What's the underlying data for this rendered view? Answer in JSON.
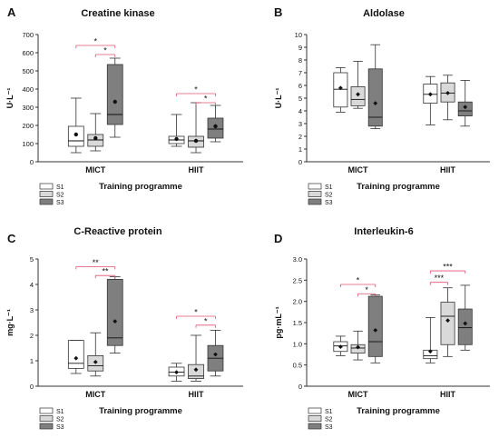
{
  "figure": {
    "colors": {
      "S1": "#ffffff",
      "S2": "#d9d9d9",
      "S3": "#7f7f7f",
      "sig_line": "#e05070",
      "axis": "#333333"
    }
  },
  "chart_data": [
    {
      "type": "box",
      "panel_label": "A",
      "title": "Creatine kinase",
      "ylabel": "U·L⁻¹",
      "xlabel": "Training programme",
      "ylim": [
        0,
        700
      ],
      "yticks": [
        0,
        100,
        200,
        300,
        400,
        500,
        600,
        700
      ],
      "categories": [
        "MICT",
        "HIIT"
      ],
      "legend": [
        "S1",
        "S2",
        "S3"
      ],
      "boxes": [
        {
          "group": "MICT",
          "session": "S1",
          "min": 50,
          "q1": 85,
          "median": 115,
          "q3": 195,
          "max": 350,
          "mean": 150
        },
        {
          "group": "MICT",
          "session": "S2",
          "min": 60,
          "q1": 85,
          "median": 120,
          "q3": 150,
          "max": 265,
          "mean": 130
        },
        {
          "group": "MICT",
          "session": "S3",
          "min": 135,
          "q1": 205,
          "median": 260,
          "q3": 535,
          "max": 570,
          "mean": 330
        },
        {
          "group": "HIIT",
          "session": "S1",
          "min": 85,
          "q1": 100,
          "median": 120,
          "q3": 140,
          "max": 260,
          "mean": 125
        },
        {
          "group": "HIIT",
          "session": "S2",
          "min": 50,
          "q1": 80,
          "median": 115,
          "q3": 140,
          "max": 325,
          "mean": 115
        },
        {
          "group": "HIIT",
          "session": "S3",
          "min": 110,
          "q1": 130,
          "median": 180,
          "q3": 240,
          "max": 310,
          "mean": 195
        }
      ],
      "significance": [
        {
          "group": "MICT",
          "from": "S1",
          "to": "S3",
          "label": "*",
          "y": 640
        },
        {
          "group": "MICT",
          "from": "S2",
          "to": "S3",
          "label": "*",
          "y": 590
        },
        {
          "group": "HIIT",
          "from": "S1",
          "to": "S3",
          "label": "*",
          "y": 375
        },
        {
          "group": "HIIT",
          "from": "S2",
          "to": "S3",
          "label": "*",
          "y": 325
        }
      ]
    },
    {
      "type": "box",
      "panel_label": "B",
      "title": "Aldolase",
      "ylabel": "U·L⁻¹",
      "xlabel": "Training programme",
      "ylim": [
        0,
        10
      ],
      "yticks": [
        0,
        1,
        2,
        3,
        4,
        5,
        6,
        7,
        8,
        9,
        10
      ],
      "categories": [
        "MICT",
        "HIIT"
      ],
      "legend": [
        "S1",
        "S2",
        "S3"
      ],
      "boxes": [
        {
          "group": "MICT",
          "session": "S1",
          "min": 3.9,
          "q1": 4.3,
          "median": 5.7,
          "q3": 7.0,
          "max": 7.4,
          "mean": 5.8
        },
        {
          "group": "MICT",
          "session": "S2",
          "min": 4.2,
          "q1": 4.4,
          "median": 4.9,
          "q3": 5.9,
          "max": 7.9,
          "mean": 5.3
        },
        {
          "group": "MICT",
          "session": "S3",
          "min": 2.6,
          "q1": 2.8,
          "median": 3.5,
          "q3": 7.3,
          "max": 9.2,
          "mean": 4.6
        },
        {
          "group": "HIIT",
          "session": "S1",
          "min": 2.9,
          "q1": 4.6,
          "median": 5.3,
          "q3": 6.1,
          "max": 6.7,
          "mean": 5.3
        },
        {
          "group": "HIIT",
          "session": "S2",
          "min": 3.3,
          "q1": 4.7,
          "median": 5.4,
          "q3": 6.2,
          "max": 6.8,
          "mean": 5.4
        },
        {
          "group": "HIIT",
          "session": "S3",
          "min": 2.8,
          "q1": 3.6,
          "median": 4.0,
          "q3": 4.7,
          "max": 6.4,
          "mean": 4.3
        }
      ],
      "significance": []
    },
    {
      "type": "box",
      "panel_label": "C",
      "title": "C-Reactive protein",
      "ylabel": "mg·L⁻¹",
      "xlabel": "Training programme",
      "ylim": [
        0,
        5
      ],
      "yticks": [
        0,
        1,
        2,
        3,
        4,
        5
      ],
      "categories": [
        "MICT",
        "HIIT"
      ],
      "legend": [
        "S1",
        "S2",
        "S3"
      ],
      "boxes": [
        {
          "group": "MICT",
          "session": "S1",
          "min": 0.5,
          "q1": 0.7,
          "median": 0.9,
          "q3": 1.8,
          "max": 1.8,
          "mean": 1.1
        },
        {
          "group": "MICT",
          "session": "S2",
          "min": 0.4,
          "q1": 0.6,
          "median": 0.8,
          "q3": 1.2,
          "max": 2.1,
          "mean": 0.95
        },
        {
          "group": "MICT",
          "session": "S3",
          "min": 1.3,
          "q1": 1.6,
          "median": 1.9,
          "q3": 4.2,
          "max": 4.3,
          "mean": 2.55
        },
        {
          "group": "HIIT",
          "session": "S1",
          "min": 0.2,
          "q1": 0.4,
          "median": 0.55,
          "q3": 0.75,
          "max": 0.9,
          "mean": 0.55
        },
        {
          "group": "HIIT",
          "session": "S2",
          "min": 0.2,
          "q1": 0.3,
          "median": 0.4,
          "q3": 0.85,
          "max": 2.0,
          "mean": 0.65
        },
        {
          "group": "HIIT",
          "session": "S3",
          "min": 0.4,
          "q1": 0.6,
          "median": 1.1,
          "q3": 1.6,
          "max": 2.2,
          "mean": 1.25
        }
      ],
      "significance": [
        {
          "group": "MICT",
          "from": "S1",
          "to": "S3",
          "label": "**",
          "y": 4.7
        },
        {
          "group": "MICT",
          "from": "S2",
          "to": "S3",
          "label": "**",
          "y": 4.35
        },
        {
          "group": "HIIT",
          "from": "S1",
          "to": "S3",
          "label": "*",
          "y": 2.75
        },
        {
          "group": "HIIT",
          "from": "S2",
          "to": "S3",
          "label": "*",
          "y": 2.4
        }
      ]
    },
    {
      "type": "box",
      "panel_label": "D",
      "title": "Interleukin-6",
      "ylabel": "pg·mL⁻¹",
      "xlabel": "Training programme",
      "ylim": [
        0,
        3.0
      ],
      "yticks": [
        0,
        0.5,
        1.0,
        1.5,
        2.0,
        2.5,
        3.0
      ],
      "ytick_labels": [
        "0",
        "0.5",
        "1.0",
        "1.5",
        "2.0",
        "2.5",
        "3.0"
      ],
      "categories": [
        "MICT",
        "HIIT"
      ],
      "legend": [
        "S1",
        "S2",
        "S3"
      ],
      "boxes": [
        {
          "group": "MICT",
          "session": "S1",
          "min": 0.72,
          "q1": 0.82,
          "median": 0.95,
          "q3": 1.05,
          "max": 1.18,
          "mean": 0.93
        },
        {
          "group": "MICT",
          "session": "S2",
          "min": 0.62,
          "q1": 0.78,
          "median": 0.9,
          "q3": 0.98,
          "max": 1.3,
          "mean": 0.92
        },
        {
          "group": "MICT",
          "session": "S3",
          "min": 0.55,
          "q1": 0.7,
          "median": 1.05,
          "q3": 2.12,
          "max": 2.15,
          "mean": 1.32
        },
        {
          "group": "HIIT",
          "session": "S1",
          "min": 0.55,
          "q1": 0.65,
          "median": 0.72,
          "q3": 0.85,
          "max": 1.62,
          "mean": 0.82
        },
        {
          "group": "HIIT",
          "session": "S2",
          "min": 0.7,
          "q1": 0.98,
          "median": 1.65,
          "q3": 1.98,
          "max": 2.32,
          "mean": 1.55
        },
        {
          "group": "HIIT",
          "session": "S3",
          "min": 0.85,
          "q1": 0.98,
          "median": 1.38,
          "q3": 1.82,
          "max": 2.38,
          "mean": 1.48
        }
      ],
      "significance": [
        {
          "group": "MICT",
          "from": "S1",
          "to": "S3",
          "label": "*",
          "y": 2.4
        },
        {
          "group": "MICT",
          "from": "S2",
          "to": "S3",
          "label": "*",
          "y": 2.18
        },
        {
          "group": "HIIT",
          "from": "S1",
          "to": "S3",
          "label": "***",
          "y": 2.72
        },
        {
          "group": "HIIT",
          "from": "S1",
          "to": "S2",
          "label": "***",
          "y": 2.45
        }
      ]
    }
  ]
}
